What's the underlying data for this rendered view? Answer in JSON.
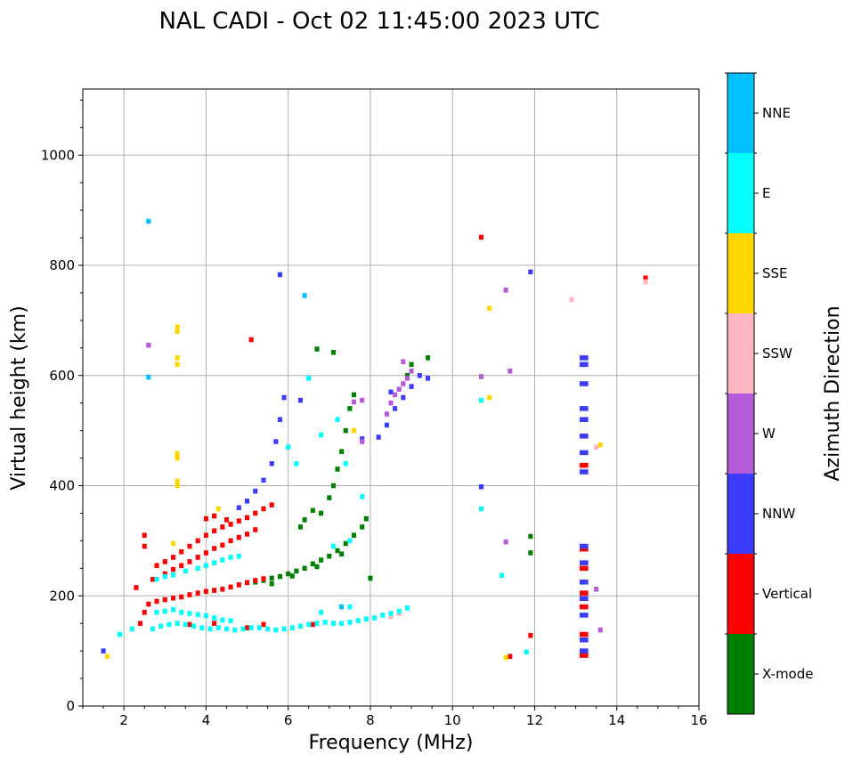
{
  "chart_data": {
    "type": "scatter",
    "title": "NAL CADI - Oct 02 11:45:00 2023 UTC",
    "xlabel": "Frequency (MHz)",
    "ylabel": "Virtual height (km)",
    "xlim": [
      1,
      16
    ],
    "ylim": [
      0,
      1120
    ],
    "grid": true,
    "x_ticks": [
      "2",
      "4",
      "6",
      "8",
      "10",
      "12",
      "14",
      "16"
    ],
    "x_tick_values": [
      2,
      4,
      6,
      8,
      10,
      12,
      14,
      16
    ],
    "y_ticks": [
      "0",
      "200",
      "400",
      "600",
      "800",
      "1000"
    ],
    "y_tick_values": [
      0,
      200,
      400,
      600,
      800,
      1000
    ],
    "colorbar": {
      "label": "Azimuth Direction",
      "categories": [
        "X-mode",
        "Vertical",
        "NNW",
        "W",
        "SSW",
        "SSE",
        "E",
        "NNE"
      ],
      "colors": [
        "#008000",
        "#ff0000",
        "#3c3cff",
        "#b55bd9",
        "#ffb6c1",
        "#ffd700",
        "#00ffff",
        "#00bfff"
      ]
    },
    "series": [
      {
        "name": "X-mode",
        "points": [
          [
            5.2,
            225
          ],
          [
            5.4,
            228
          ],
          [
            5.6,
            232
          ],
          [
            5.8,
            235
          ],
          [
            6.0,
            240
          ],
          [
            6.2,
            245
          ],
          [
            6.4,
            250
          ],
          [
            6.6,
            258
          ],
          [
            6.8,
            265
          ],
          [
            7.0,
            272
          ],
          [
            7.2,
            282
          ],
          [
            7.4,
            295
          ],
          [
            7.6,
            310
          ],
          [
            7.8,
            325
          ],
          [
            7.9,
            340
          ],
          [
            5.6,
            222
          ],
          [
            6.1,
            236
          ],
          [
            6.7,
            253
          ],
          [
            7.3,
            276
          ],
          [
            6.4,
            338
          ],
          [
            6.8,
            350
          ],
          [
            7.0,
            378
          ],
          [
            7.1,
            400
          ],
          [
            7.2,
            430
          ],
          [
            7.3,
            462
          ],
          [
            7.4,
            500
          ],
          [
            7.5,
            540
          ],
          [
            7.6,
            565
          ],
          [
            6.7,
            648
          ],
          [
            7.1,
            642
          ],
          [
            6.3,
            325
          ],
          [
            6.6,
            355
          ],
          [
            8.0,
            232
          ],
          [
            8.9,
            600
          ],
          [
            9.0,
            620
          ],
          [
            9.4,
            632
          ],
          [
            11.9,
            278
          ],
          [
            11.9,
            308
          ]
        ]
      },
      {
        "name": "Vertical",
        "points": [
          [
            3.2,
            196
          ],
          [
            3.4,
            198
          ],
          [
            3.6,
            202
          ],
          [
            3.8,
            205
          ],
          [
            4.0,
            208
          ],
          [
            4.2,
            210
          ],
          [
            4.4,
            212
          ],
          [
            4.6,
            216
          ],
          [
            4.8,
            220
          ],
          [
            5.0,
            224
          ],
          [
            5.2,
            228
          ],
          [
            5.4,
            231
          ],
          [
            2.8,
            190
          ],
          [
            3.0,
            193
          ],
          [
            2.4,
            150
          ],
          [
            2.5,
            170
          ],
          [
            2.6,
            185
          ],
          [
            2.3,
            215
          ],
          [
            2.7,
            230
          ],
          [
            2.8,
            255
          ],
          [
            3.0,
            262
          ],
          [
            3.2,
            270
          ],
          [
            3.4,
            280
          ],
          [
            3.6,
            290
          ],
          [
            3.8,
            300
          ],
          [
            4.0,
            310
          ],
          [
            4.2,
            318
          ],
          [
            4.4,
            325
          ],
          [
            4.6,
            330
          ],
          [
            4.8,
            336
          ],
          [
            5.0,
            342
          ],
          [
            5.2,
            350
          ],
          [
            5.4,
            358
          ],
          [
            5.6,
            365
          ],
          [
            3.0,
            240
          ],
          [
            3.2,
            248
          ],
          [
            3.4,
            255
          ],
          [
            3.6,
            262
          ],
          [
            3.8,
            270
          ],
          [
            4.0,
            278
          ],
          [
            4.2,
            286
          ],
          [
            4.4,
            292
          ],
          [
            4.6,
            300
          ],
          [
            4.8,
            306
          ],
          [
            5.0,
            312
          ],
          [
            5.2,
            320
          ],
          [
            4.0,
            340
          ],
          [
            4.2,
            345
          ],
          [
            4.5,
            338
          ],
          [
            2.5,
            290
          ],
          [
            2.5,
            310
          ],
          [
            5.1,
            665
          ],
          [
            3.6,
            148
          ],
          [
            4.2,
            150
          ],
          [
            5.0,
            142
          ],
          [
            5.4,
            148
          ],
          [
            6.6,
            148
          ],
          [
            13.2,
            92
          ],
          [
            13.2,
            130
          ],
          [
            13.2,
            180
          ],
          [
            13.2,
            205
          ],
          [
            13.2,
            250
          ],
          [
            13.2,
            285
          ],
          [
            13.2,
            437
          ],
          [
            14.7,
            777
          ],
          [
            11.9,
            128
          ],
          [
            11.4,
            90
          ],
          [
            10.7,
            851
          ]
        ]
      },
      {
        "name": "NNW",
        "points": [
          [
            4.8,
            360
          ],
          [
            5.0,
            372
          ],
          [
            5.2,
            390
          ],
          [
            5.4,
            410
          ],
          [
            5.6,
            440
          ],
          [
            5.7,
            480
          ],
          [
            5.8,
            520
          ],
          [
            5.9,
            560
          ],
          [
            5.8,
            783
          ],
          [
            7.8,
            485
          ],
          [
            8.2,
            488
          ],
          [
            8.4,
            510
          ],
          [
            8.6,
            540
          ],
          [
            8.8,
            560
          ],
          [
            9.0,
            580
          ],
          [
            9.2,
            600
          ],
          [
            9.4,
            595
          ],
          [
            8.5,
            570
          ],
          [
            10.7,
            398
          ],
          [
            13.2,
            100
          ],
          [
            13.2,
            120
          ],
          [
            13.2,
            165
          ],
          [
            13.2,
            195
          ],
          [
            13.2,
            225
          ],
          [
            13.2,
            260
          ],
          [
            13.2,
            290
          ],
          [
            13.2,
            425
          ],
          [
            13.2,
            460
          ],
          [
            13.2,
            490
          ],
          [
            13.2,
            520
          ],
          [
            13.2,
            540
          ],
          [
            13.2,
            585
          ],
          [
            13.2,
            620
          ],
          [
            13.2,
            632
          ],
          [
            1.5,
            100
          ],
          [
            11.9,
            788
          ],
          [
            6.3,
            555
          ]
        ]
      },
      {
        "name": "W",
        "points": [
          [
            8.4,
            530
          ],
          [
            8.5,
            550
          ],
          [
            8.6,
            565
          ],
          [
            8.7,
            575
          ],
          [
            8.8,
            585
          ],
          [
            8.9,
            595
          ],
          [
            9.0,
            608
          ],
          [
            8.8,
            625
          ],
          [
            7.8,
            555
          ],
          [
            11.3,
            298
          ],
          [
            11.3,
            755
          ],
          [
            11.4,
            608
          ],
          [
            10.7,
            598
          ],
          [
            13.5,
            212
          ],
          [
            13.6,
            138
          ],
          [
            2.6,
            655
          ],
          [
            7.8,
            480
          ],
          [
            7.6,
            552
          ]
        ]
      },
      {
        "name": "SSW",
        "points": [
          [
            8.5,
            162
          ],
          [
            8.7,
            168
          ],
          [
            12.9,
            738
          ],
          [
            14.7,
            770
          ],
          [
            13.5,
            470
          ]
        ]
      },
      {
        "name": "SSE",
        "points": [
          [
            3.3,
            400
          ],
          [
            3.3,
            408
          ],
          [
            3.3,
            450
          ],
          [
            3.3,
            458
          ],
          [
            3.3,
            620
          ],
          [
            3.3,
            632
          ],
          [
            3.3,
            680
          ],
          [
            3.3,
            688
          ],
          [
            1.6,
            90
          ],
          [
            10.9,
            560
          ],
          [
            10.9,
            722
          ],
          [
            11.3,
            88
          ],
          [
            13.6,
            474
          ],
          [
            3.2,
            295
          ],
          [
            4.3,
            358
          ],
          [
            7.6,
            500
          ]
        ]
      },
      {
        "name": "E",
        "points": [
          [
            2.7,
            140
          ],
          [
            2.9,
            145
          ],
          [
            3.1,
            148
          ],
          [
            3.3,
            150
          ],
          [
            3.5,
            148
          ],
          [
            3.7,
            145
          ],
          [
            3.9,
            142
          ],
          [
            4.1,
            140
          ],
          [
            4.3,
            142
          ],
          [
            4.5,
            140
          ],
          [
            4.7,
            138
          ],
          [
            4.9,
            140
          ],
          [
            5.1,
            142
          ],
          [
            5.3,
            142
          ],
          [
            5.5,
            140
          ],
          [
            5.7,
            138
          ],
          [
            5.9,
            140
          ],
          [
            6.1,
            142
          ],
          [
            6.3,
            145
          ],
          [
            6.5,
            148
          ],
          [
            6.7,
            150
          ],
          [
            6.9,
            152
          ],
          [
            7.1,
            150
          ],
          [
            7.3,
            150
          ],
          [
            7.5,
            152
          ],
          [
            7.7,
            155
          ],
          [
            7.9,
            158
          ],
          [
            8.1,
            160
          ],
          [
            8.3,
            165
          ],
          [
            8.5,
            168
          ],
          [
            8.7,
            172
          ],
          [
            8.9,
            178
          ],
          [
            2.8,
            170
          ],
          [
            3.0,
            172
          ],
          [
            3.2,
            175
          ],
          [
            3.4,
            170
          ],
          [
            3.6,
            168
          ],
          [
            3.8,
            166
          ],
          [
            4.0,
            164
          ],
          [
            4.2,
            160
          ],
          [
            4.4,
            156
          ],
          [
            4.6,
            155
          ],
          [
            2.8,
            230
          ],
          [
            3.0,
            235
          ],
          [
            3.2,
            238
          ],
          [
            3.5,
            245
          ],
          [
            3.8,
            250
          ],
          [
            4.0,
            255
          ],
          [
            4.2,
            260
          ],
          [
            4.4,
            265
          ],
          [
            4.6,
            270
          ],
          [
            4.8,
            272
          ],
          [
            6.8,
            170
          ],
          [
            7.5,
            180
          ],
          [
            10.7,
            358
          ],
          [
            10.7,
            555
          ],
          [
            11.2,
            237
          ],
          [
            11.8,
            98
          ],
          [
            6.5,
            595
          ],
          [
            7.8,
            380
          ],
          [
            7.2,
            520
          ],
          [
            6.8,
            492
          ],
          [
            1.9,
            130
          ],
          [
            2.2,
            140
          ],
          [
            6.2,
            440
          ],
          [
            6.0,
            470
          ],
          [
            7.4,
            440
          ],
          [
            7.1,
            290
          ],
          [
            7.5,
            300
          ]
        ]
      },
      {
        "name": "NNE",
        "points": [
          [
            2.6,
            880
          ],
          [
            2.6,
            597
          ],
          [
            6.4,
            745
          ],
          [
            7.3,
            180
          ]
        ]
      }
    ]
  }
}
